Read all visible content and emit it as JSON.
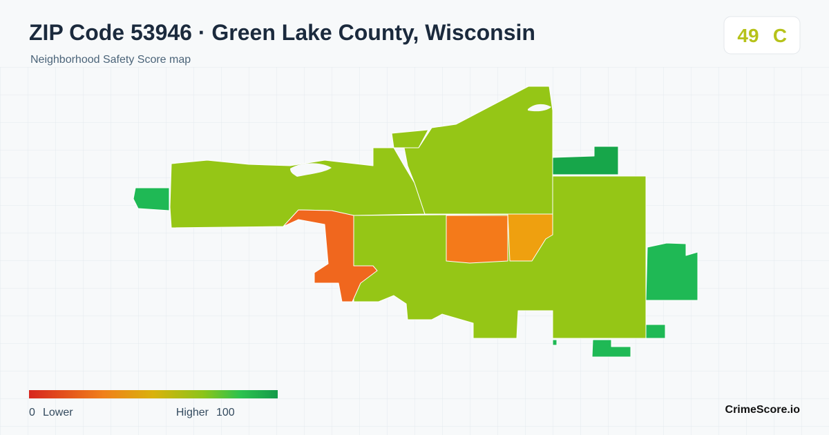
{
  "header": {
    "title": "ZIP Code 53946 · Green Lake County, Wisconsin",
    "subtitle": "Neighborhood Safety Score map"
  },
  "score": {
    "value": 49,
    "grade": "C"
  },
  "legend": {
    "min": 0,
    "min_label": "Lower",
    "max_label": "Higher",
    "max": 100
  },
  "brand": "CrimeScore.io"
}
